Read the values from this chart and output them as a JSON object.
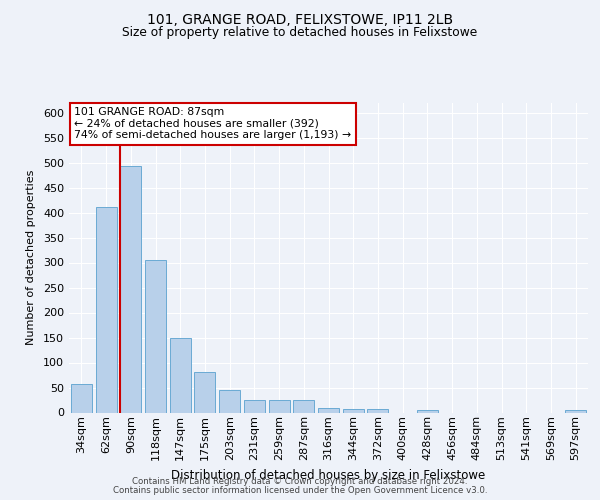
{
  "title1": "101, GRANGE ROAD, FELIXSTOWE, IP11 2LB",
  "title2": "Size of property relative to detached houses in Felixstowe",
  "xlabel": "Distribution of detached houses by size in Felixstowe",
  "ylabel": "Number of detached properties",
  "bar_color": "#b8d0ea",
  "bar_edge_color": "#6aaad4",
  "categories": [
    "34sqm",
    "62sqm",
    "90sqm",
    "118sqm",
    "147sqm",
    "175sqm",
    "203sqm",
    "231sqm",
    "259sqm",
    "287sqm",
    "316sqm",
    "344sqm",
    "372sqm",
    "400sqm",
    "428sqm",
    "456sqm",
    "484sqm",
    "513sqm",
    "541sqm",
    "569sqm",
    "597sqm"
  ],
  "values": [
    58,
    412,
    494,
    305,
    149,
    82,
    45,
    25,
    25,
    25,
    10,
    8,
    8,
    0,
    5,
    0,
    0,
    0,
    0,
    0,
    5
  ],
  "property_label": "101 GRANGE ROAD: 87sqm",
  "annotation_line1": "← 24% of detached houses are smaller (392)",
  "annotation_line2": "74% of semi-detached houses are larger (1,193) →",
  "vline_color": "#cc0000",
  "vline_x": 1.58,
  "ylim": [
    0,
    620
  ],
  "yticks": [
    0,
    50,
    100,
    150,
    200,
    250,
    300,
    350,
    400,
    450,
    500,
    550,
    600
  ],
  "footer1": "Contains HM Land Registry data © Crown copyright and database right 2024.",
  "footer2": "Contains public sector information licensed under the Open Government Licence v3.0.",
  "background_color": "#eef2f9",
  "grid_color": "#ffffff"
}
